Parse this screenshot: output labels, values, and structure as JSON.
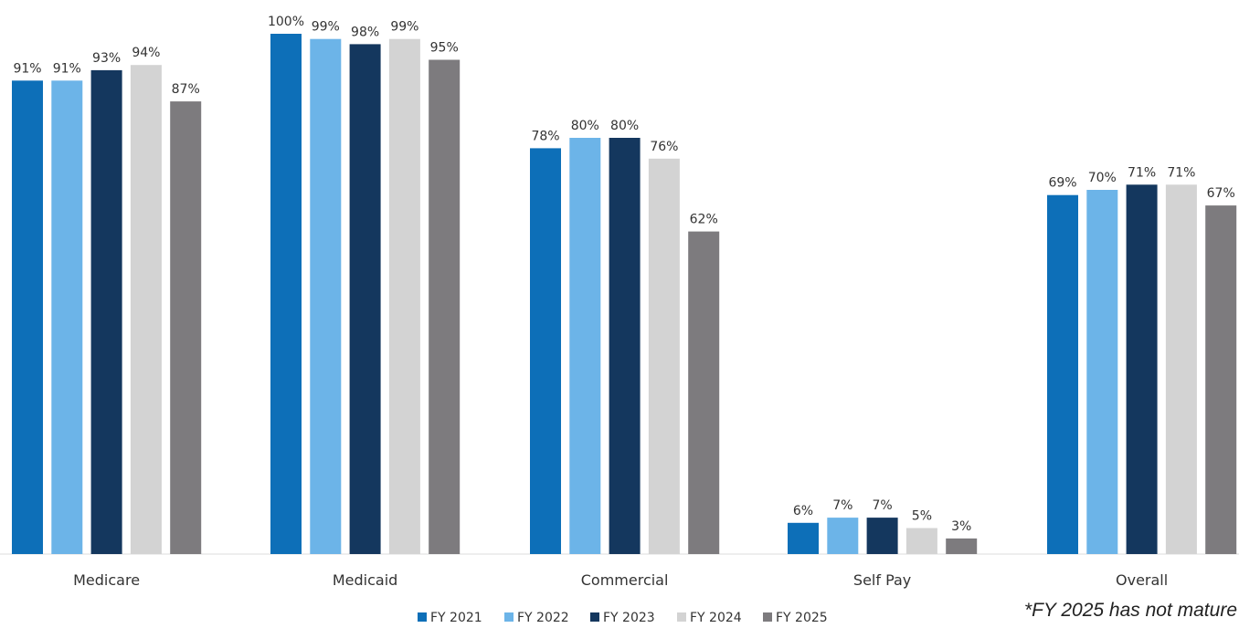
{
  "chart_data": {
    "type": "bar",
    "categories": [
      "Medicare",
      "Medicaid",
      "Commercial",
      "Self Pay",
      "Overall"
    ],
    "series": [
      {
        "name": "FY 2021",
        "values": [
          91,
          100,
          78,
          6,
          69
        ],
        "labels": [
          "91%",
          "100%",
          "78%",
          "6%",
          "69%"
        ]
      },
      {
        "name": "FY 2022",
        "values": [
          91,
          99,
          80,
          7,
          70
        ],
        "labels": [
          "91%",
          "99%",
          "80%",
          "7%",
          "70%"
        ]
      },
      {
        "name": "FY 2023",
        "values": [
          93,
          98,
          80,
          7,
          71
        ],
        "labels": [
          "93%",
          "98%",
          "80%",
          "7%",
          "71%"
        ]
      },
      {
        "name": "FY 2024",
        "values": [
          94,
          99,
          76,
          5,
          71
        ],
        "labels": [
          "94%",
          "99%",
          "76%",
          "5%",
          "71%"
        ]
      },
      {
        "name": "FY 2025",
        "values": [
          87,
          95,
          62,
          3,
          67
        ],
        "labels": [
          "87%",
          "95%",
          "62%",
          "3%",
          "67%"
        ]
      }
    ],
    "colors": [
      "#0d6fb8",
      "#6cb4e8",
      "#14375e",
      "#d3d3d3",
      "#7d7b7e"
    ],
    "ylim": [
      0,
      100
    ],
    "grid": false,
    "legend_position": "bottom",
    "footnote": "*FY 2025 has not mature"
  }
}
